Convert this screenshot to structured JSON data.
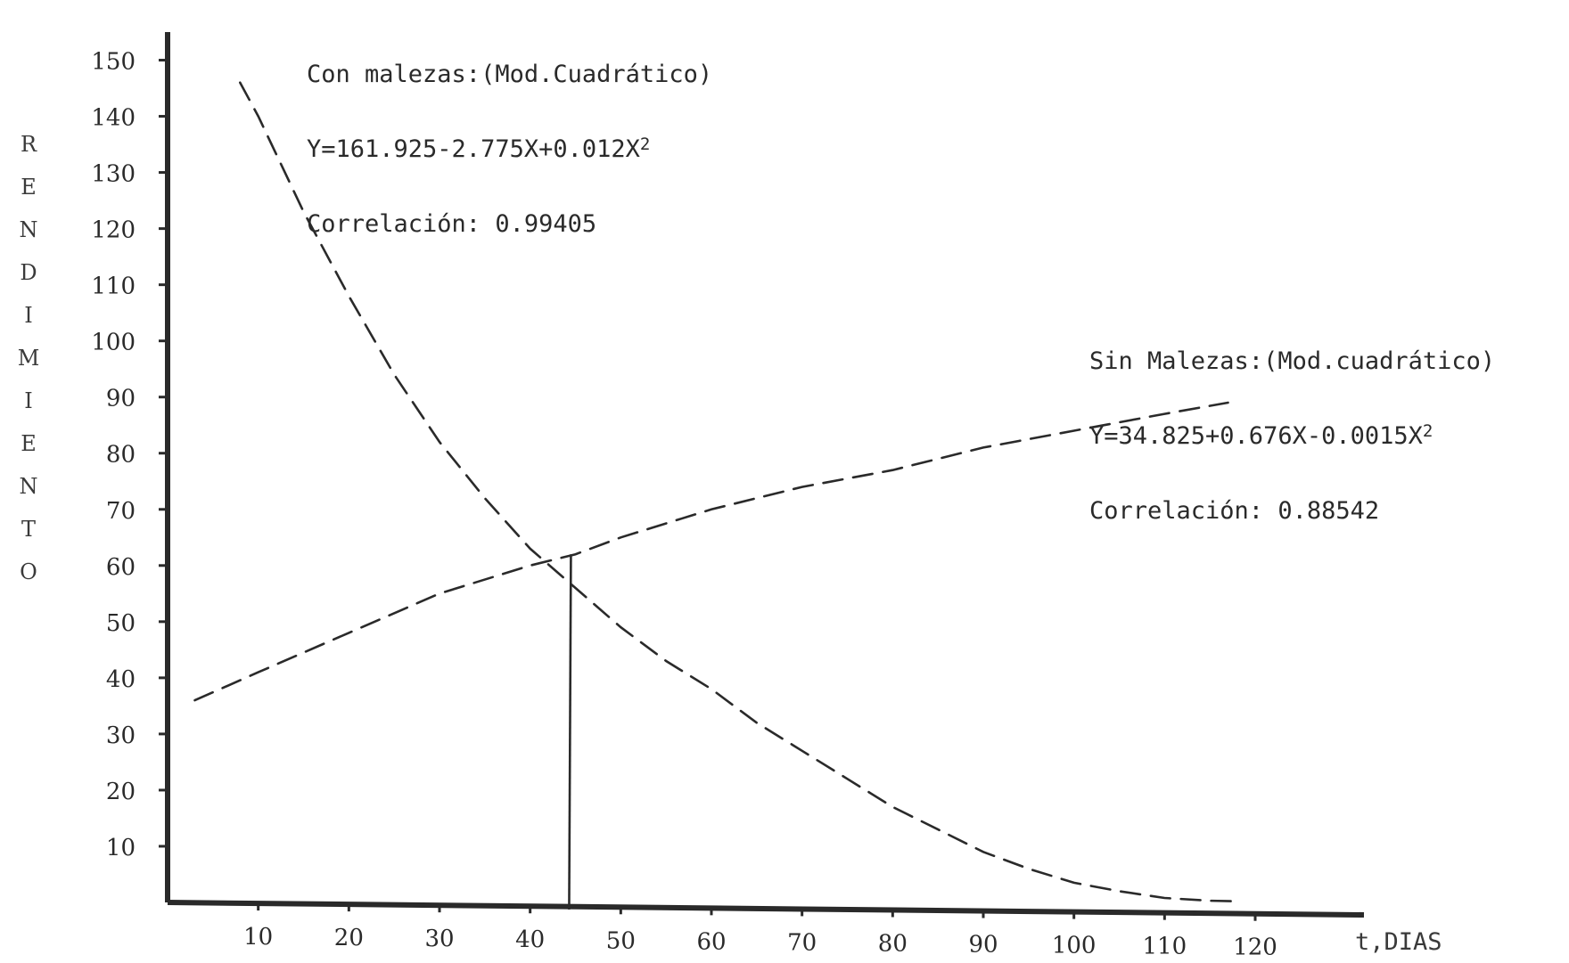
{
  "chart_data": {
    "type": "line",
    "xlabel": "t,DIAS",
    "ylabel": "RENDIMIENTO",
    "x_ticks": [
      10,
      20,
      30,
      40,
      50,
      60,
      70,
      80,
      90,
      100,
      110,
      120
    ],
    "y_ticks": [
      10,
      20,
      30,
      40,
      50,
      60,
      70,
      80,
      90,
      100,
      110,
      120,
      130,
      140,
      150
    ],
    "xlim": [
      0,
      132
    ],
    "ylim": [
      0,
      155
    ],
    "grid": false,
    "series": [
      {
        "name": "Con malezas",
        "style": "dashed",
        "x": [
          8,
          10,
          15,
          20,
          25,
          30,
          35,
          40,
          45,
          50,
          55,
          60,
          65,
          70,
          75,
          80,
          85,
          90,
          95,
          100,
          105,
          110,
          115,
          118
        ],
        "y": [
          146,
          140,
          123,
          108,
          94,
          82,
          72,
          63,
          56,
          49,
          43,
          38,
          32,
          27,
          22,
          17,
          13,
          9,
          6,
          3.5,
          2,
          0.8,
          0.3,
          0.2
        ]
      },
      {
        "name": "Sin Malezas",
        "style": "dashed",
        "x": [
          3,
          10,
          20,
          30,
          40,
          45,
          50,
          60,
          70,
          80,
          90,
          100,
          110,
          117
        ],
        "y": [
          36,
          41,
          48,
          55,
          60,
          62,
          65,
          70,
          74,
          77,
          81,
          84,
          87,
          89
        ]
      }
    ],
    "marker_line": {
      "x": 44.5,
      "y": 62
    },
    "annotations": {
      "con_malezas": {
        "title": "Con malezas:(Mod.Cuadrático)",
        "equation": "Y=161.925-2.775X+0.012X",
        "exponent": "2",
        "correlation": "Correlación: 0.99405"
      },
      "sin_malezas": {
        "title": "Sin Malezas:(Mod.cuadrático)",
        "equation": "Y=34.825+0.676X-0.0015X",
        "exponent": "2",
        "correlation": "Correlación: 0.88542"
      }
    },
    "colors": {
      "axis": "#2a2a2a",
      "line": "#2a2a2a",
      "text": "#2a2a2a"
    }
  }
}
